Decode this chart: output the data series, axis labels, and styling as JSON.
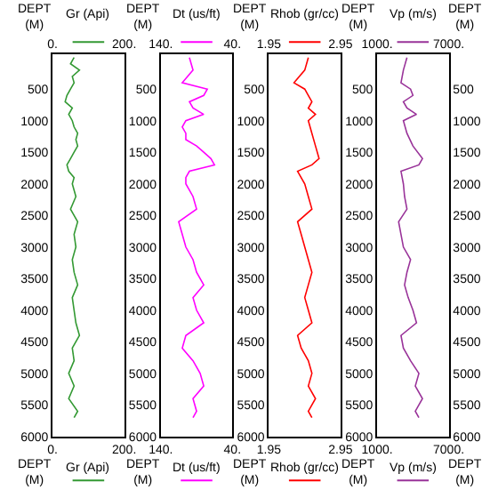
{
  "chart_data": [
    {
      "type": "line",
      "xlabel": "Gr (Api)",
      "x2label": "Gr (Api)",
      "ylabel": "DEPT (M)",
      "xlim": [
        0,
        200
      ],
      "xticks": [
        {
          "value": 0,
          "label": "0."
        },
        {
          "value": 200,
          "label": "200."
        }
      ],
      "x2lim": [
        0,
        200
      ],
      "x2ticks": [
        {
          "value": 0,
          "label": "0."
        },
        {
          "value": 200,
          "label": "200."
        }
      ],
      "ylim": [
        6000,
        -50
      ],
      "yticks": [
        500,
        1000,
        1500,
        2000,
        2500,
        3000,
        3500,
        4000,
        4500,
        5000,
        5500,
        6000
      ],
      "series": [
        {
          "color": "#339933",
          "x": [
            60,
            50,
            75,
            55,
            60,
            50,
            40,
            35,
            55,
            45,
            55,
            60,
            70,
            65,
            70,
            60,
            50,
            40,
            45,
            60,
            55,
            65,
            50,
            70,
            60,
            65,
            55,
            60,
            70,
            55,
            60,
            65,
            75,
            55,
            60,
            45,
            60,
            45,
            70,
            60
          ],
          "values": [
            0,
            100,
            200,
            300,
            400,
            500,
            600,
            700,
            800,
            900,
            1000,
            1100,
            1200,
            1300,
            1400,
            1500,
            1600,
            1700,
            1800,
            1900,
            2000,
            2200,
            2400,
            2600,
            2800,
            3000,
            3200,
            3400,
            3600,
            3800,
            4000,
            4200,
            4400,
            4600,
            4800,
            5000,
            5200,
            5400,
            5600,
            5700
          ]
        }
      ]
    },
    {
      "type": "line",
      "xlabel": "Dt (us/ft)",
      "x2label": "Dt (us/ft)",
      "ylabel": "DEPT (M)",
      "xlim": [
        140,
        40
      ],
      "xticks": [
        {
          "value": 140,
          "label": "140."
        },
        {
          "value": 40,
          "label": "40."
        }
      ],
      "x2lim": [
        140,
        40
      ],
      "x2ticks": [
        {
          "value": 140,
          "label": "140."
        },
        {
          "value": 40,
          "label": "40."
        }
      ],
      "ylim": [
        6000,
        -50
      ],
      "yticks": [
        500,
        1000,
        1500,
        2000,
        2500,
        3000,
        3500,
        4000,
        4500,
        5000,
        5500,
        6000
      ],
      "series": [
        {
          "color": "#ff00ff",
          "x": [
            100,
            95,
            110,
            75,
            80,
            100,
            95,
            80,
            105,
            110,
            105,
            105,
            90,
            80,
            70,
            65,
            100,
            105,
            105,
            95,
            90,
            115,
            110,
            105,
            95,
            90,
            80,
            95,
            90,
            80,
            105,
            110,
            95,
            85,
            80,
            95,
            90,
            95
          ],
          "values": [
            0,
            200,
            400,
            500,
            600,
            700,
            800,
            900,
            1000,
            1100,
            1200,
            1300,
            1400,
            1500,
            1600,
            1700,
            1800,
            1900,
            2000,
            2200,
            2400,
            2600,
            2800,
            3000,
            3200,
            3400,
            3600,
            3800,
            4000,
            4200,
            4400,
            4600,
            4800,
            5000,
            5200,
            5400,
            5600,
            5700
          ]
        }
      ]
    },
    {
      "type": "line",
      "xlabel": "Rhob (gr/cc)",
      "x2label": "Rhob (gr/cc)",
      "ylabel": "DEPT (M)",
      "xlim": [
        1.95,
        2.95
      ],
      "xticks": [
        {
          "value": 1.95,
          "label": "1.95"
        },
        {
          "value": 2.95,
          "label": "2.95"
        }
      ],
      "x2lim": [
        1.95,
        2.95
      ],
      "x2ticks": [
        {
          "value": 1.95,
          "label": "1.95"
        },
        {
          "value": 2.95,
          "label": "2.95"
        }
      ],
      "ylim": [
        6000,
        -50
      ],
      "yticks": [
        500,
        1000,
        1500,
        2000,
        2500,
        3000,
        3500,
        4000,
        4500,
        5000,
        5500,
        6000
      ],
      "series": [
        {
          "color": "#ff0000",
          "x": [
            2.5,
            2.45,
            2.3,
            2.45,
            2.5,
            2.55,
            2.5,
            2.6,
            2.5,
            2.55,
            2.6,
            2.65,
            2.55,
            2.35,
            2.45,
            2.5,
            2.55,
            2.35,
            2.4,
            2.45,
            2.5,
            2.55,
            2.5,
            2.45,
            2.5,
            2.55,
            2.35,
            2.4,
            2.5,
            2.55,
            2.5,
            2.6,
            2.5,
            2.55
          ],
          "values": [
            0,
            200,
            400,
            500,
            600,
            700,
            800,
            900,
            1000,
            1200,
            1400,
            1600,
            1700,
            1800,
            2000,
            2200,
            2400,
            2600,
            2800,
            3000,
            3200,
            3400,
            3600,
            3800,
            4000,
            4200,
            4400,
            4600,
            4800,
            5000,
            5200,
            5400,
            5600,
            5700
          ]
        }
      ]
    },
    {
      "type": "line",
      "xlabel": "Vp (m/s)",
      "x2label": "Vp (m/s)",
      "ylabel": "DEPT (M)",
      "y2label": "DEPT (M)",
      "xlim": [
        1000,
        7000
      ],
      "xticks": [
        {
          "value": 1000,
          "label": "1000."
        },
        {
          "value": 7000,
          "label": "7000."
        }
      ],
      "x2lim": [
        1000,
        7000
      ],
      "x2ticks": [
        {
          "value": 1000,
          "label": "1000."
        },
        {
          "value": 7000,
          "label": "7000."
        }
      ],
      "ylim": [
        6000,
        -50
      ],
      "yticks": [
        500,
        1000,
        1500,
        2000,
        2500,
        3000,
        3500,
        4000,
        4500,
        5000,
        5500,
        6000
      ],
      "y2lim": [
        6000,
        -50
      ],
      "y2ticks": [
        500,
        1000,
        1500,
        2000,
        2500,
        3000,
        3500,
        4000,
        4500,
        5000,
        5500,
        6000
      ],
      "series": [
        {
          "color": "#993399",
          "x": [
            3500,
            3200,
            3000,
            3800,
            4000,
            3200,
            3500,
            4300,
            3200,
            3500,
            4000,
            4800,
            4500,
            3000,
            3200,
            3300,
            3500,
            2800,
            3000,
            3200,
            3800,
            3500,
            3300,
            3600,
            4000,
            4300,
            3000,
            3200,
            3800,
            4500,
            4200,
            4800,
            4200,
            4500
          ],
          "values": [
            0,
            200,
            400,
            500,
            600,
            700,
            800,
            900,
            1000,
            1200,
            1400,
            1600,
            1700,
            1800,
            2000,
            2200,
            2400,
            2600,
            2800,
            3000,
            3200,
            3400,
            3600,
            3800,
            4000,
            4200,
            4400,
            4600,
            4800,
            5000,
            5200,
            5400,
            5600,
            5700
          ]
        }
      ]
    }
  ]
}
